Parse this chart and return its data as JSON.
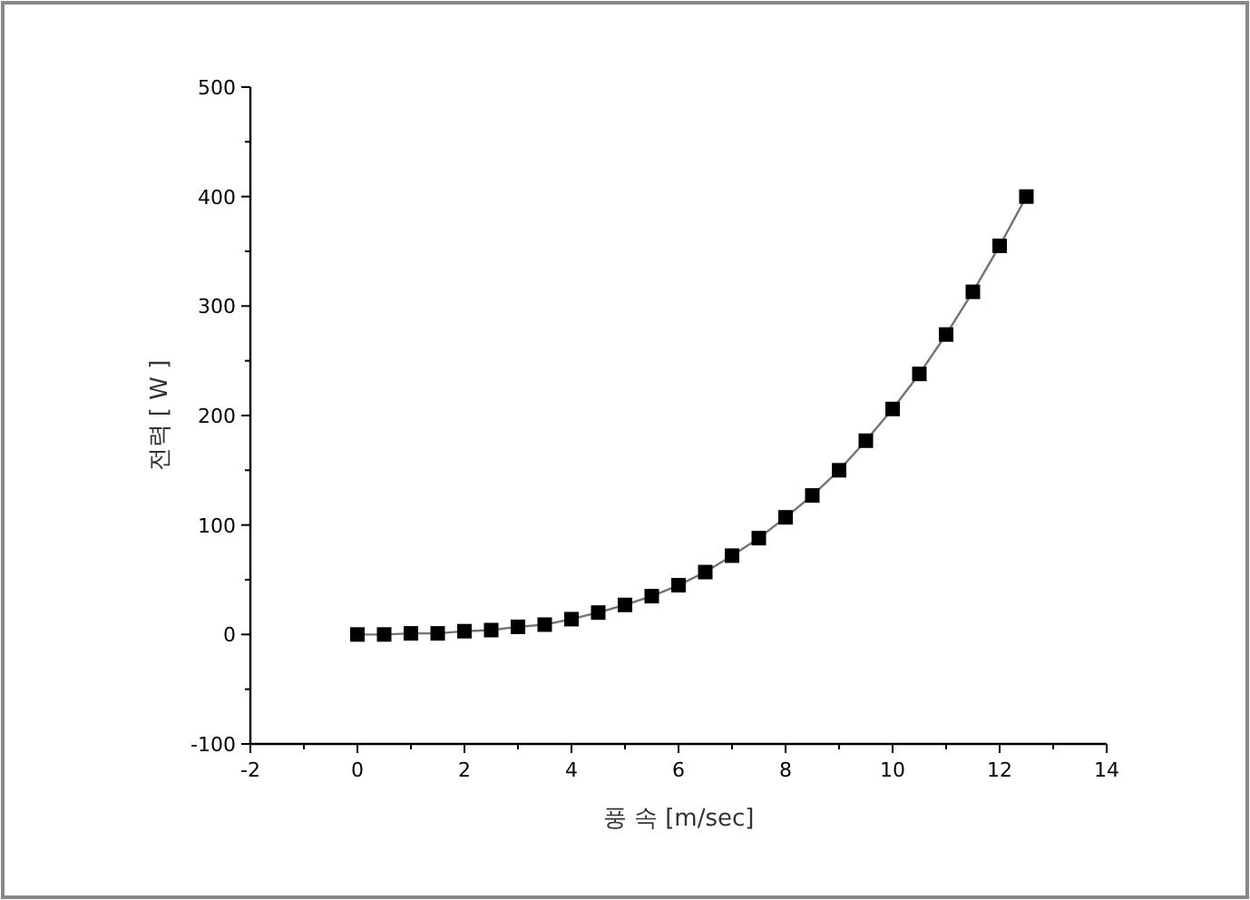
{
  "chart_data": {
    "type": "line",
    "xlabel": "풍 속  [m/sec]",
    "ylabel": "전력  [ W ]",
    "x": [
      0,
      0.5,
      1,
      1.5,
      2,
      2.5,
      3,
      3.5,
      4,
      4.5,
      5,
      5.5,
      6,
      6.5,
      7,
      7.5,
      8,
      8.5,
      9,
      9.5,
      10,
      10.5,
      11,
      11.5,
      12,
      12.5
    ],
    "series": [
      {
        "color": "#000000",
        "values": [
          0,
          0,
          1,
          1,
          3,
          4,
          7,
          9,
          14,
          20,
          27,
          35,
          45,
          57,
          72,
          88,
          107,
          127,
          150,
          177,
          206,
          238,
          274,
          313,
          355,
          400
        ]
      }
    ],
    "xlim": [
      -2,
      14
    ],
    "xticks": [
      -2,
      0,
      2,
      4,
      6,
      8,
      10,
      12,
      14
    ],
    "ylim": [
      -100,
      500
    ],
    "yticks": [
      -100,
      0,
      100,
      200,
      300,
      400,
      500
    ],
    "marker": "square",
    "line_style": "solid",
    "grid": false
  }
}
